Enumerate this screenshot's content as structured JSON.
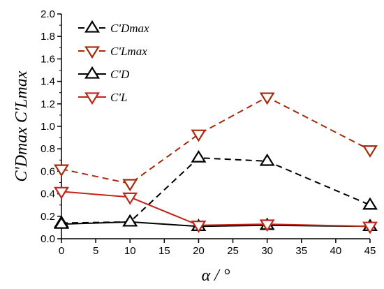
{
  "chart_data": {
    "type": "line",
    "x": [
      0,
      10,
      20,
      30,
      45
    ],
    "xlabel": "α / °",
    "ylabel": "C'Dmax  C'Lmax",
    "xlim": [
      0,
      45
    ],
    "ylim": [
      0,
      2.0
    ],
    "xticks": [
      "0",
      "5",
      "10",
      "15",
      "20",
      "25",
      "30",
      "35",
      "40",
      "45"
    ],
    "yticks": [
      "0.0",
      "0.2",
      "0.4",
      "0.6",
      "0.8",
      "1.0",
      "1.2",
      "1.4",
      "1.6",
      "1.8",
      "2.0"
    ],
    "grid": false,
    "legend_position": "top-left",
    "series": [
      {
        "name": "C'Dmax",
        "values": [
          0.14,
          0.15,
          0.72,
          0.69,
          0.3
        ],
        "color": "#000000",
        "line": "dashed",
        "marker": "triangle-up"
      },
      {
        "name": "C'Lmax",
        "values": [
          0.62,
          0.49,
          0.93,
          1.26,
          0.79
        ],
        "color": "#a52a0a",
        "line": "dashed",
        "marker": "triangle-down"
      },
      {
        "name": "C'D",
        "values": [
          0.13,
          0.15,
          0.11,
          0.12,
          0.11
        ],
        "color": "#000000",
        "line": "solid",
        "marker": "triangle-up"
      },
      {
        "name": "C'L",
        "values": [
          0.42,
          0.37,
          0.12,
          0.13,
          0.11
        ],
        "color": "#c0271a",
        "line": "solid",
        "marker": "triangle-down"
      }
    ]
  }
}
